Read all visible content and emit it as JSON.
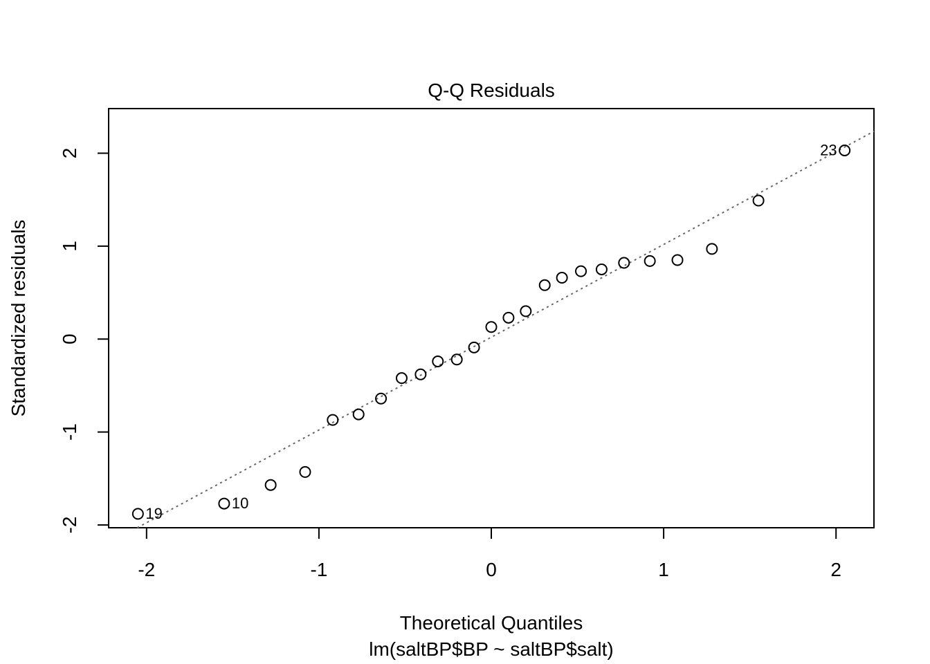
{
  "chart_data": {
    "type": "scatter",
    "title": "Q-Q Residuals",
    "xlabel": "Theoretical Quantiles",
    "sublabel": "lm(saltBP$BP ~ saltBP$salt)",
    "ylabel": "Standardized residuals",
    "xlim": [
      -2.22,
      2.22
    ],
    "ylim": [
      -2.03,
      2.48
    ],
    "x_ticks": [
      -2,
      -1,
      0,
      1,
      2
    ],
    "x_tick_labels": [
      "-2",
      "-1",
      "0",
      "1",
      "2"
    ],
    "y_ticks": [
      -2,
      -1,
      0,
      1,
      2
    ],
    "y_tick_labels": [
      "-2",
      "-1",
      "0",
      "1",
      "2"
    ],
    "grid": false,
    "reference_line": {
      "slope": 0.998,
      "intercept": 0.02,
      "style": "dotted",
      "color": "#666666"
    },
    "points": [
      {
        "x": -2.05,
        "y": -1.88,
        "label": "19"
      },
      {
        "x": -1.55,
        "y": -1.77,
        "label": "10"
      },
      {
        "x": -1.28,
        "y": -1.57
      },
      {
        "x": -1.08,
        "y": -1.43
      },
      {
        "x": -0.92,
        "y": -0.87
      },
      {
        "x": -0.77,
        "y": -0.81
      },
      {
        "x": -0.64,
        "y": -0.64
      },
      {
        "x": -0.52,
        "y": -0.42
      },
      {
        "x": -0.41,
        "y": -0.38
      },
      {
        "x": -0.31,
        "y": -0.24
      },
      {
        "x": -0.2,
        "y": -0.22
      },
      {
        "x": -0.1,
        "y": -0.09
      },
      {
        "x": 0.0,
        "y": 0.13
      },
      {
        "x": 0.1,
        "y": 0.23
      },
      {
        "x": 0.2,
        "y": 0.3
      },
      {
        "x": 0.31,
        "y": 0.58
      },
      {
        "x": 0.41,
        "y": 0.66
      },
      {
        "x": 0.52,
        "y": 0.73
      },
      {
        "x": 0.64,
        "y": 0.75
      },
      {
        "x": 0.77,
        "y": 0.82
      },
      {
        "x": 0.92,
        "y": 0.84
      },
      {
        "x": 1.08,
        "y": 0.85
      },
      {
        "x": 1.28,
        "y": 0.97
      },
      {
        "x": 1.55,
        "y": 1.49
      },
      {
        "x": 2.05,
        "y": 2.03,
        "label": "23"
      }
    ]
  }
}
